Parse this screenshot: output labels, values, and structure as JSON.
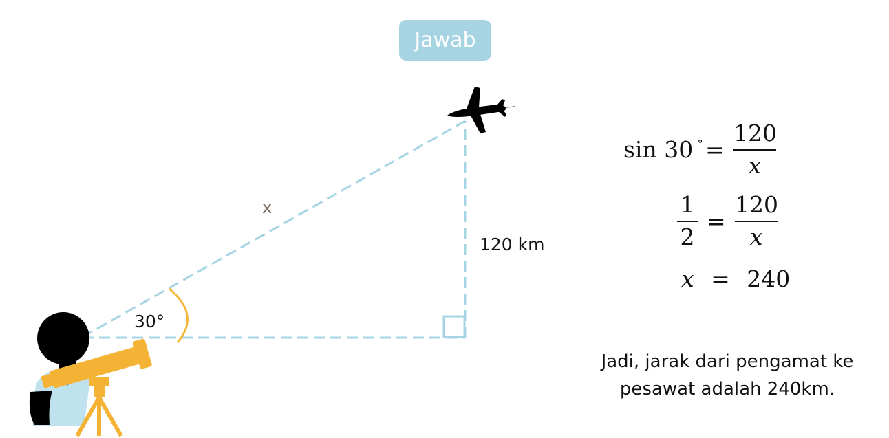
{
  "header": {
    "button_label": "Jawab"
  },
  "diagram": {
    "hypotenuse_label": "x",
    "height_label": "120 km",
    "angle_label": "30°"
  },
  "equations": {
    "line1": {
      "lhs": "sin 30",
      "degree": "∘",
      "equals": "=",
      "numerator": "120",
      "denominator": "x"
    },
    "line2": {
      "lhs_num": "1",
      "lhs_den": "2",
      "equals": "=",
      "numerator": "120",
      "denominator": "x"
    },
    "line3": {
      "lhs": "x",
      "equals": "=",
      "rhs": "240"
    }
  },
  "conclusion": {
    "line1": "Jadi, jarak dari pengamat ke",
    "line2": "pesawat adalah 240km."
  },
  "colors": {
    "dash": "#a6d4e3",
    "angle_arc": "#f3b73a",
    "telescope": "#f5b335",
    "shirt": "#bfe2ee",
    "silhouette": "#000000",
    "x_mark": "#7a6a5a"
  }
}
